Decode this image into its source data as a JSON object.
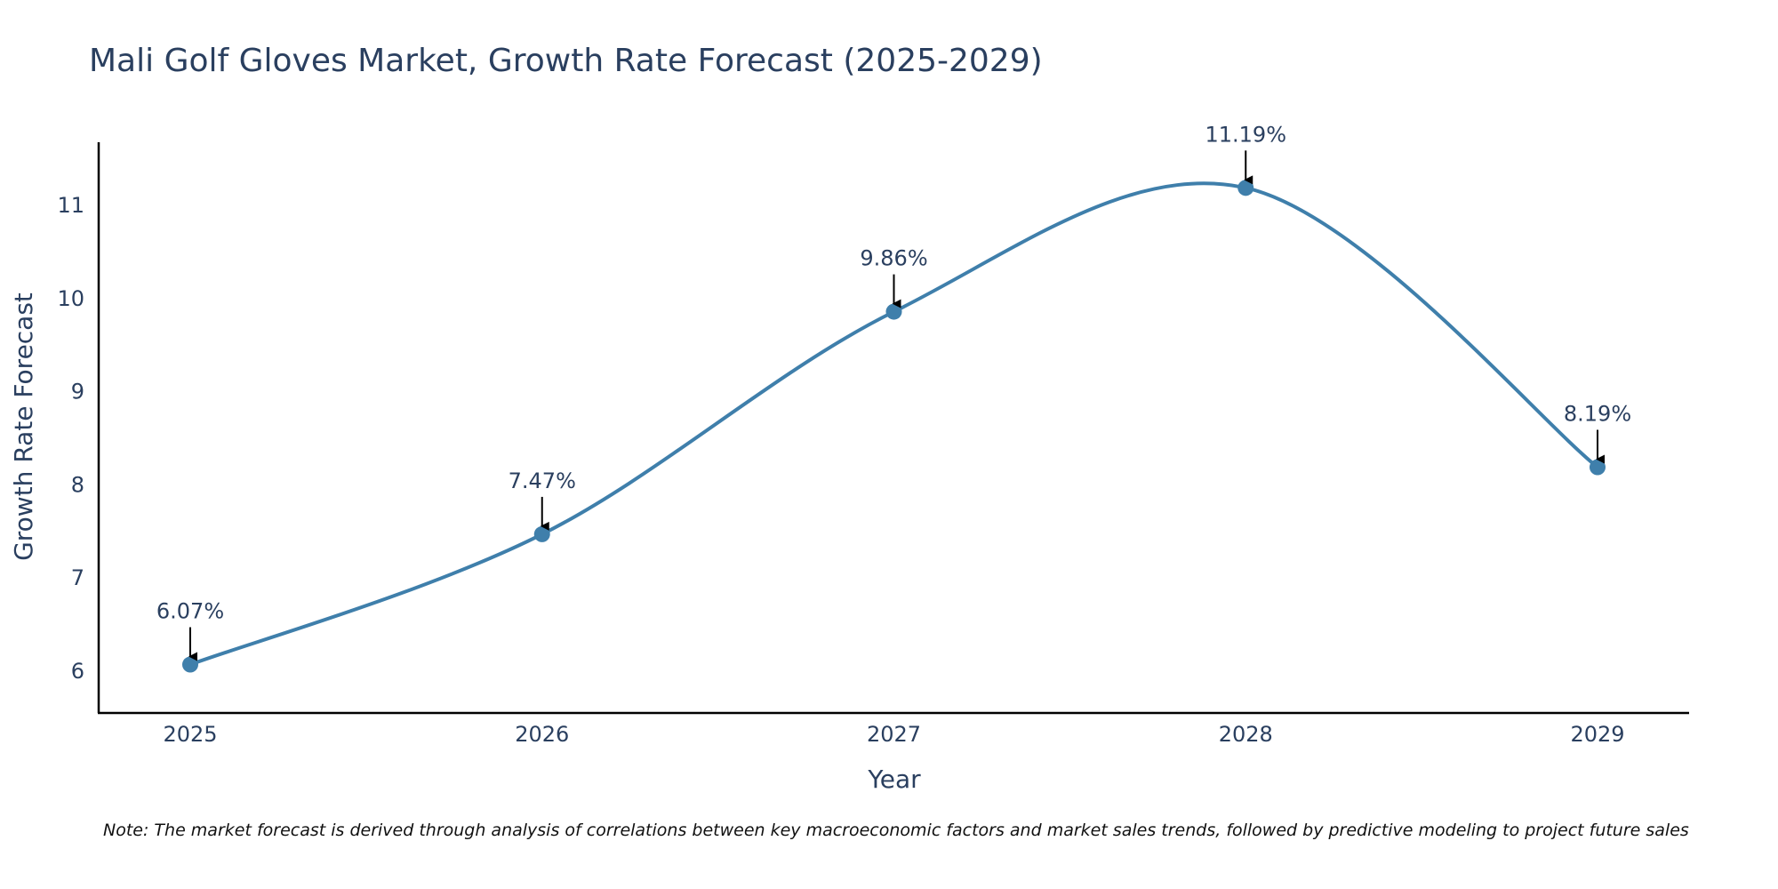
{
  "colors": {
    "line": "#3f7fab",
    "marker": "#3f7fab",
    "axis": "#000000",
    "text": "#2a3f5f",
    "arrow": "#000000"
  },
  "chart_data": {
    "type": "line",
    "title": "Mali Golf Gloves Market, Growth Rate Forecast (2025-2029)",
    "xlabel": "Year",
    "ylabel": "Growth Rate Forecast",
    "categories": [
      "2025",
      "2026",
      "2027",
      "2028",
      "2029"
    ],
    "values": [
      6.07,
      7.47,
      9.86,
      11.19,
      8.19
    ],
    "data_labels": [
      "6.07%",
      "7.47%",
      "9.86%",
      "11.19%",
      "8.19%"
    ],
    "yticks": [
      6,
      7,
      8,
      9,
      10,
      11
    ],
    "ylim": [
      5.55,
      11.68
    ],
    "grid": false,
    "line_shape": "spline",
    "legend": "none"
  },
  "note": "Note: The market forecast is derived through analysis of correlations between key macroeconomic factors and market sales trends, followed by predictive modeling to project future sales"
}
